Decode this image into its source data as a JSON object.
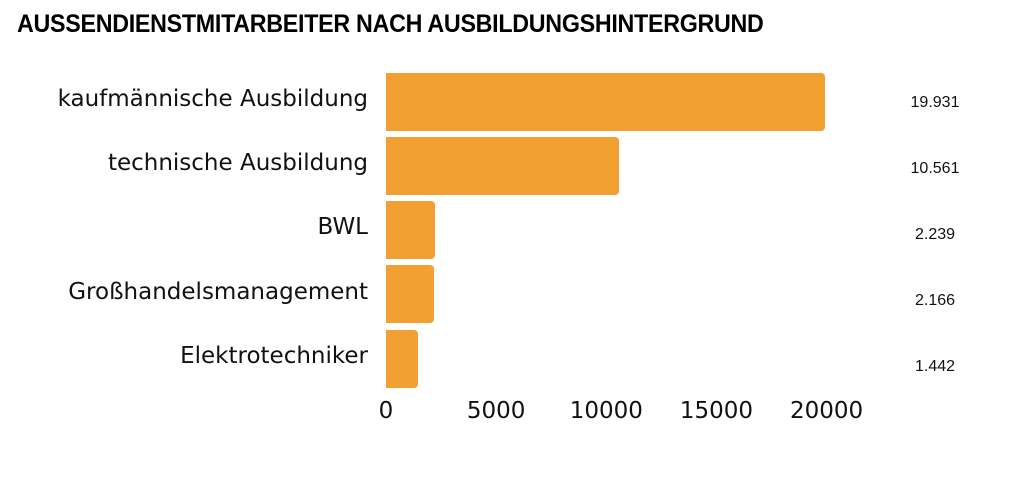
{
  "chart_data": {
    "type": "bar",
    "orientation": "horizontal",
    "title": "AUSSENDIENSTMITARBEITER NACH AUSBILDUNGSHINTERGRUND",
    "categories": [
      "kaufmännische Ausbildung",
      "technische Ausbildung",
      "BWL",
      "Großhandelsmanagement",
      "Elektrotechniker"
    ],
    "values": [
      19931,
      10561,
      2239,
      2166,
      1442
    ],
    "value_labels": [
      "19.931",
      "10.561",
      "2.239",
      "2.166",
      "1.442"
    ],
    "xlabel": "",
    "ylabel": "",
    "xlim": [
      0,
      20000
    ],
    "x_ticks": [
      "0",
      "5000",
      "10000",
      "15000",
      "20000"
    ],
    "x_tick_values": [
      0,
      5000,
      10000,
      15000,
      20000
    ],
    "grid": false,
    "legend": null,
    "bar_color": "#F2A031"
  }
}
